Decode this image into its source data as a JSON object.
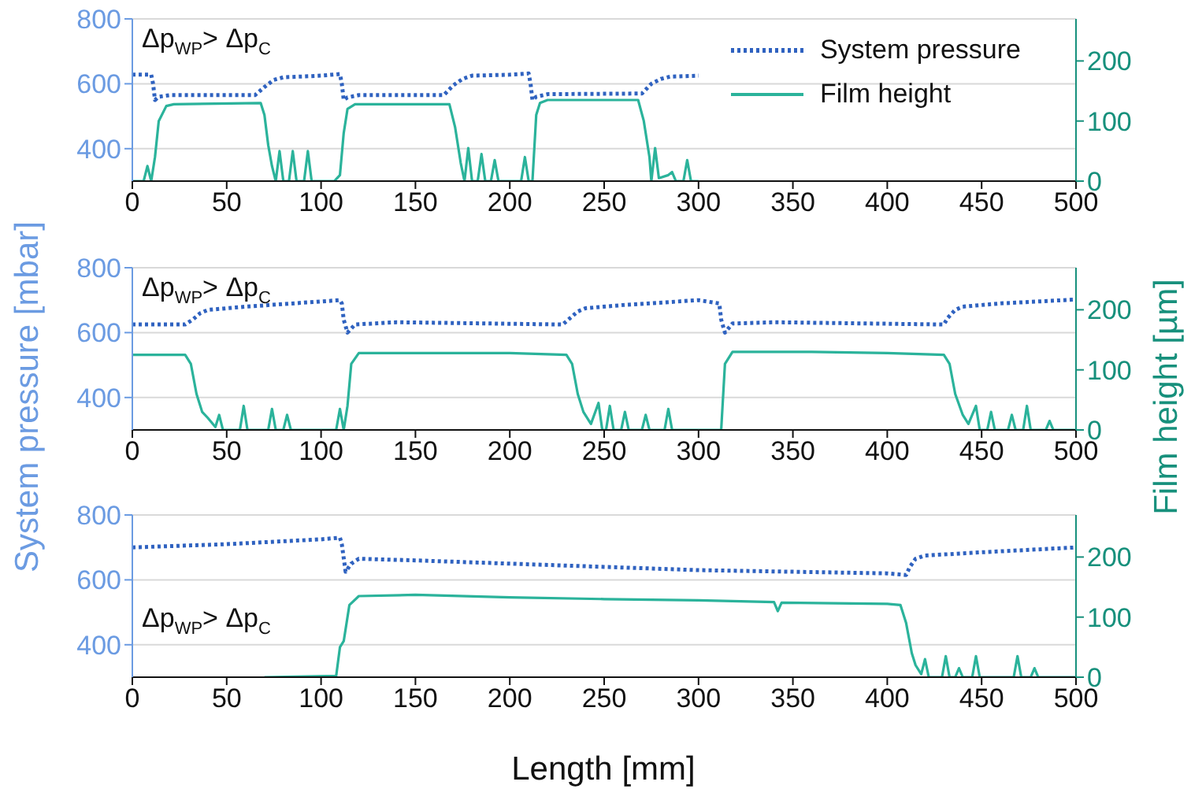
{
  "chart_data": [
    {
      "type": "line",
      "annotations": [
        "Δp$_{WP}$> Δp$_{C}$"
      ],
      "xlim": [
        0,
        500
      ],
      "xticks": [
        0,
        50,
        100,
        150,
        200,
        250,
        300,
        350,
        400,
        450,
        500
      ],
      "ylim": [
        300,
        800
      ],
      "yticks": [
        400,
        600,
        800
      ],
      "y2lim": [
        0,
        270
      ],
      "y2ticks": [
        0,
        100,
        200
      ],
      "grid": "y",
      "legend": "top right",
      "series": [
        {
          "name": "System pressure",
          "color": "#2f62c0",
          "line_style": "dotted",
          "x": [
            0,
            10,
            11,
            12,
            14,
            20,
            65,
            70,
            75,
            80,
            100,
            110,
            111,
            112,
            114,
            120,
            165,
            170,
            175,
            180,
            200,
            210,
            211,
            212,
            214,
            220,
            270,
            275,
            280,
            285,
            300
          ],
          "values": [
            628,
            628,
            600,
            550,
            560,
            565,
            565,
            590,
            612,
            620,
            625,
            630,
            600,
            550,
            558,
            565,
            565,
            595,
            615,
            625,
            628,
            632,
            600,
            550,
            560,
            568,
            570,
            600,
            615,
            622,
            625
          ]
        },
        {
          "name": "Film height",
          "color": "#2bb39b",
          "line_style": "solid",
          "axis": "y2",
          "x": [
            0,
            6,
            8,
            10,
            12,
            14,
            18,
            22,
            68,
            70,
            72,
            74,
            76,
            78,
            80,
            83,
            85,
            87,
            91,
            93,
            95,
            107,
            110,
            112,
            114,
            118,
            168,
            171,
            174,
            176,
            178,
            180,
            183,
            185,
            187,
            190,
            192,
            194,
            206,
            208,
            210,
            212,
            214,
            216,
            220,
            268,
            271,
            274,
            275,
            277,
            279,
            284,
            286,
            288,
            292,
            294,
            296,
            300
          ],
          "values": [
            0,
            0,
            25,
            0,
            40,
            100,
            125,
            128,
            130,
            110,
            60,
            25,
            0,
            50,
            0,
            0,
            50,
            0,
            0,
            50,
            0,
            0,
            10,
            80,
            120,
            128,
            128,
            90,
            30,
            0,
            55,
            0,
            0,
            45,
            0,
            0,
            35,
            0,
            0,
            40,
            0,
            0,
            110,
            130,
            135,
            135,
            100,
            40,
            0,
            55,
            5,
            10,
            15,
            0,
            0,
            35,
            0,
            0
          ]
        }
      ]
    },
    {
      "type": "line",
      "ylabel": "System pressure [mbar]",
      "y2label": "Film height [µm]",
      "annotations": [
        "Δp$_{WP}$> Δp$_{C}$"
      ],
      "xlim": [
        0,
        500
      ],
      "xticks": [
        0,
        50,
        100,
        150,
        200,
        250,
        300,
        350,
        400,
        450,
        500
      ],
      "ylim": [
        300,
        800
      ],
      "yticks": [
        400,
        600,
        800
      ],
      "y2lim": [
        0,
        270
      ],
      "y2ticks": [
        0,
        100,
        200
      ],
      "grid": "y",
      "series": [
        {
          "color": "#2f62c0",
          "line_style": "dotted",
          "x": [
            0,
            28,
            32,
            36,
            40,
            60,
            110,
            111,
            112,
            114,
            118,
            140,
            228,
            232,
            236,
            240,
            260,
            300,
            311,
            312,
            314,
            318,
            340,
            430,
            432,
            436,
            440,
            460,
            500
          ],
          "values": [
            625,
            625,
            640,
            660,
            670,
            680,
            700,
            690,
            640,
            600,
            625,
            632,
            625,
            645,
            665,
            675,
            685,
            700,
            690,
            640,
            600,
            628,
            632,
            625,
            645,
            670,
            680,
            690,
            702
          ]
        },
        {
          "color": "#2bb39b",
          "line_style": "solid",
          "axis": "y2",
          "x": [
            0,
            28,
            31,
            34,
            37,
            40,
            44,
            46,
            48,
            57,
            59,
            61,
            72,
            74,
            76,
            80,
            82,
            84,
            108,
            110,
            112,
            114,
            116,
            120,
            200,
            230,
            233,
            236,
            239,
            243,
            247,
            249,
            251,
            253,
            255,
            259,
            261,
            263,
            270,
            272,
            274,
            282,
            284,
            286,
            312,
            314,
            318,
            360,
            400,
            430,
            433,
            436,
            440,
            443,
            447,
            449,
            453,
            455,
            457,
            464,
            466,
            468,
            472,
            474,
            476,
            484,
            486,
            488,
            500
          ],
          "values": [
            125,
            125,
            110,
            60,
            30,
            20,
            5,
            25,
            0,
            0,
            40,
            0,
            0,
            35,
            0,
            0,
            25,
            0,
            0,
            35,
            0,
            40,
            110,
            128,
            128,
            125,
            110,
            60,
            30,
            10,
            45,
            0,
            0,
            40,
            0,
            0,
            30,
            0,
            0,
            25,
            0,
            0,
            35,
            0,
            0,
            110,
            130,
            130,
            128,
            125,
            110,
            60,
            25,
            10,
            40,
            0,
            0,
            30,
            0,
            0,
            25,
            0,
            0,
            40,
            0,
            0,
            15,
            0,
            0
          ]
        }
      ]
    },
    {
      "type": "line",
      "xlabel": "Length [mm]",
      "annotations": [
        "Δp$_{WP}$> Δp$_{C}$"
      ],
      "xlim": [
        0,
        500
      ],
      "xticks": [
        0,
        50,
        100,
        150,
        200,
        250,
        300,
        350,
        400,
        450,
        500
      ],
      "ylim": [
        300,
        800
      ],
      "yticks": [
        400,
        600,
        800
      ],
      "y2lim": [
        0,
        270
      ],
      "y2ticks": [
        0,
        100,
        200
      ],
      "grid": "y",
      "series": [
        {
          "color": "#2f62c0",
          "line_style": "dotted",
          "x": [
            0,
            50,
            100,
            110,
            111,
            113,
            116,
            120,
            150,
            200,
            250,
            300,
            350,
            400,
            410,
            412,
            415,
            420,
            450,
            500
          ],
          "values": [
            700,
            710,
            725,
            730,
            710,
            625,
            650,
            665,
            660,
            650,
            640,
            630,
            625,
            620,
            615,
            640,
            665,
            675,
            685,
            700
          ]
        },
        {
          "color": "#2bb39b",
          "line_style": "solid",
          "axis": "y2",
          "x": [
            70,
            108,
            110,
            112,
            115,
            120,
            150,
            200,
            250,
            300,
            340,
            342,
            344,
            400,
            407,
            410,
            413,
            415,
            418,
            420,
            422,
            429,
            431,
            433,
            436,
            438,
            440,
            445,
            447,
            449,
            467,
            469,
            471,
            476,
            478,
            480,
            500
          ],
          "values": [
            0,
            2,
            50,
            60,
            120,
            135,
            137,
            133,
            130,
            128,
            125,
            110,
            124,
            122,
            120,
            90,
            40,
            20,
            5,
            30,
            0,
            0,
            35,
            0,
            0,
            15,
            0,
            0,
            35,
            0,
            0,
            35,
            0,
            0,
            15,
            0,
            0
          ]
        }
      ]
    }
  ]
}
